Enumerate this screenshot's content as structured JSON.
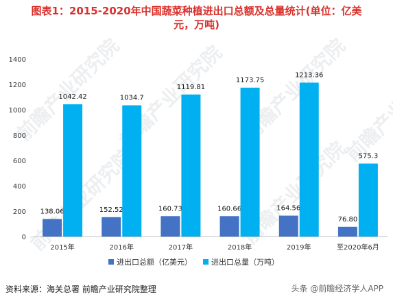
{
  "title": {
    "line1": "图表1：2015-2020年中国蔬菜种植进出口总额及总量统计(单位：亿美",
    "line2": "元，万吨)"
  },
  "source": "资料来源：海关总署 前瞻产业研究院整理",
  "watermark_text": "头条 @前瞻经济学人APP",
  "background_watermark": "前瞻产业研究院",
  "colors": {
    "title": "#d9302b",
    "series_amount": "#4472c4",
    "series_volume": "#00b0f0"
  },
  "chart_data": {
    "type": "bar",
    "categories": [
      "2015年",
      "2016年",
      "2017年",
      "2018年",
      "2019年",
      "至2020年6月"
    ],
    "series": [
      {
        "name": "进出口总额（亿美元）",
        "values": [
          138.06,
          152.52,
          160.73,
          160.66,
          164.56,
          76.8
        ],
        "labels": [
          "138.06",
          "152.52",
          "160.73",
          "160.66",
          "164.56",
          "76.80"
        ]
      },
      {
        "name": "进出口总量（万吨）",
        "values": [
          1042.42,
          1034.7,
          1119.81,
          1173.75,
          1213.36,
          575.3
        ],
        "labels": [
          "1042.42",
          "1034.7",
          "1119.81",
          "1173.75",
          "1213.36",
          "575.3"
        ]
      }
    ],
    "ylim": [
      0,
      1400
    ],
    "yticks": [
      "0",
      "200",
      "400",
      "600",
      "800",
      "1000",
      "1200",
      "1400"
    ],
    "legend_position": "bottom",
    "grid": false
  }
}
